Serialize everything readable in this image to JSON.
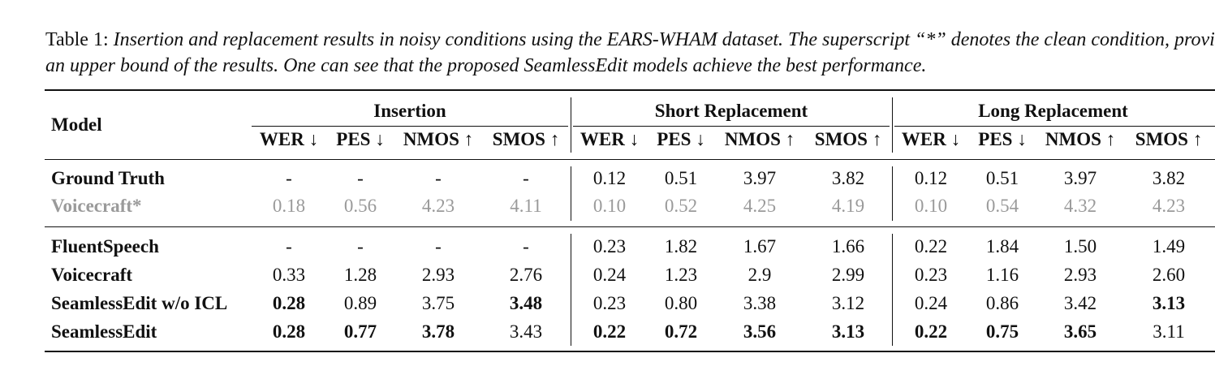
{
  "caption": {
    "label": "Table 1:",
    "text": "Insertion and replacement results in noisy conditions using the EARS-WHAM dataset. The superscript “*” denotes the clean condition, providing an upper bound of the results. One can see that the proposed SeamlessEdit models achieve the best performance."
  },
  "table": {
    "model_header": "Model",
    "groups": [
      {
        "name": "Insertion",
        "metrics": [
          "WER ↓",
          "PES ↓",
          "NMOS ↑",
          "SMOS ↑"
        ]
      },
      {
        "name": "Short Replacement",
        "metrics": [
          "WER ↓",
          "PES ↓",
          "NMOS ↑",
          "SMOS ↑"
        ]
      },
      {
        "name": "Long Replacement",
        "metrics": [
          "WER ↓",
          "PES ↓",
          "NMOS ↑",
          "SMOS ↑"
        ]
      }
    ],
    "sections": [
      [
        {
          "model": "Ground Truth",
          "cells": [
            "-",
            "-",
            "-",
            "-",
            "0.12",
            "0.51",
            "3.97",
            "3.82",
            "0.12",
            "0.51",
            "3.97",
            "3.82"
          ],
          "bold": []
        },
        {
          "model": "Voicecraft*",
          "cells": [
            "0.18",
            "0.56",
            "4.23",
            "4.11",
            "0.10",
            "0.52",
            "4.25",
            "4.19",
            "0.10",
            "0.54",
            "4.32",
            "4.23"
          ],
          "bold": [],
          "color": "#9a9a9a"
        }
      ],
      [
        {
          "model": "FluentSpeech",
          "cells": [
            "-",
            "-",
            "-",
            "-",
            "0.23",
            "1.82",
            "1.67",
            "1.66",
            "0.22",
            "1.84",
            "1.50",
            "1.49"
          ],
          "bold": []
        },
        {
          "model": "Voicecraft",
          "cells": [
            "0.33",
            "1.28",
            "2.93",
            "2.76",
            "0.24",
            "1.23",
            "2.9",
            "2.99",
            "0.23",
            "1.16",
            "2.93",
            "2.60"
          ],
          "bold": []
        },
        {
          "model": "SeamlessEdit w/o ICL",
          "cells": [
            "0.28",
            "0.89",
            "3.75",
            "3.48",
            "0.23",
            "0.80",
            "3.38",
            "3.12",
            "0.24",
            "0.86",
            "3.42",
            "3.13"
          ],
          "bold": [
            0,
            3,
            11
          ]
        },
        {
          "model": "SeamlessEdit",
          "cells": [
            "0.28",
            "0.77",
            "3.78",
            "3.43",
            "0.22",
            "0.72",
            "3.56",
            "3.13",
            "0.22",
            "0.75",
            "3.65",
            "3.11"
          ],
          "bold": [
            0,
            1,
            2,
            4,
            5,
            6,
            7,
            8,
            9,
            10
          ]
        }
      ]
    ]
  }
}
